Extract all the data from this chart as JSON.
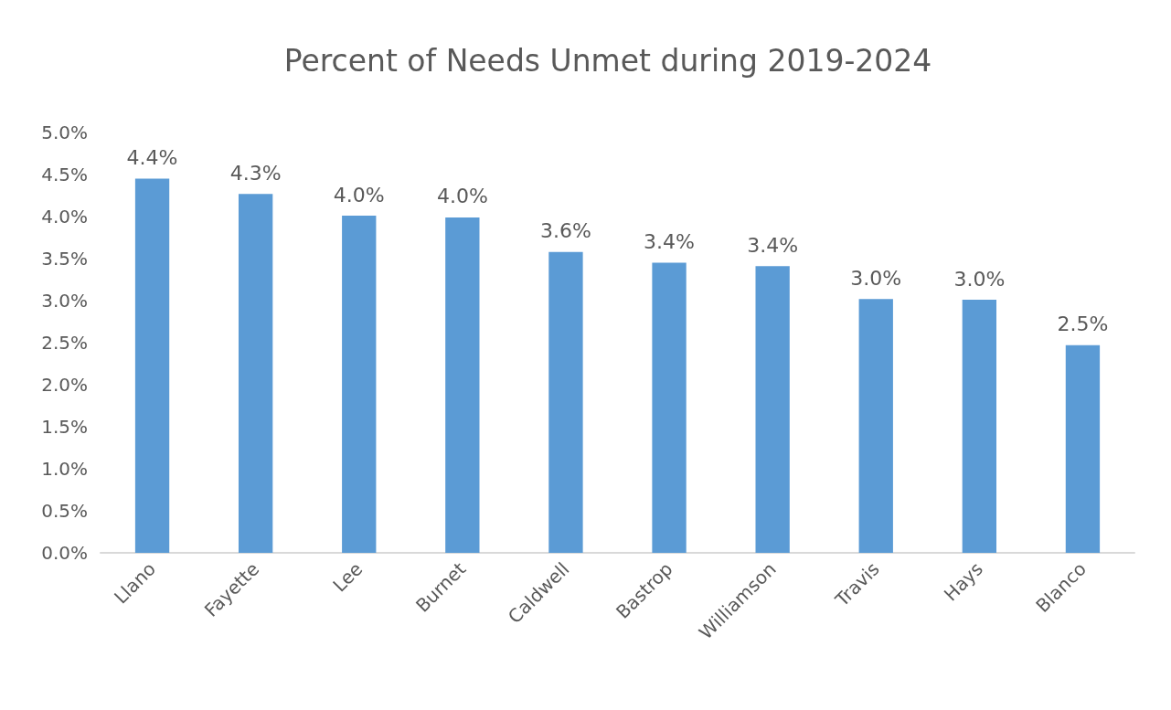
{
  "chart_data": {
    "type": "bar",
    "title": "Percent of Needs Unmet during 2019-2024",
    "categories": [
      "Llano",
      "Fayette",
      "Lee",
      "Burnet",
      "Caldwell",
      "Bastrop",
      "Williamson",
      "Travis",
      "Hays",
      "Blanco"
    ],
    "values": [
      4.45,
      4.27,
      4.01,
      3.99,
      3.58,
      3.45,
      3.41,
      3.02,
      3.01,
      2.47
    ],
    "value_labels": [
      "4.4%",
      "4.3%",
      "4.0%",
      "4.0%",
      "3.6%",
      "3.4%",
      "3.4%",
      "3.0%",
      "3.0%",
      "2.5%"
    ],
    "color": "#5b9bd5",
    "ylim": [
      0,
      5
    ],
    "yticks": [
      {
        "value": 0,
        "label": "0.0%"
      },
      {
        "value": 0.5,
        "label": "0.5%"
      },
      {
        "value": 1,
        "label": "1.0%"
      },
      {
        "value": 1.5,
        "label": "1.5%"
      },
      {
        "value": 2,
        "label": "2.0%"
      },
      {
        "value": 2.5,
        "label": "2.5%"
      },
      {
        "value": 3,
        "label": "3.0%"
      },
      {
        "value": 3.5,
        "label": "3.5%"
      },
      {
        "value": 4,
        "label": "4.0%"
      },
      {
        "value": 4.5,
        "label": "4.5%"
      },
      {
        "value": 5,
        "label": "5.0%"
      }
    ],
    "grid": false
  }
}
